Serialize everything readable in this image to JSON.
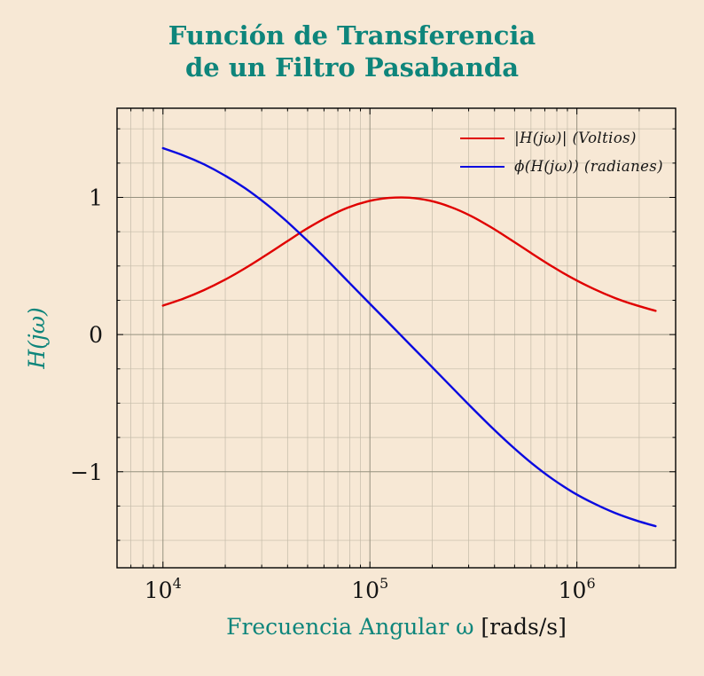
{
  "title": {
    "line1": "Función de Transferencia",
    "line2": "de un Filtro Pasabanda"
  },
  "ylabel": "H(jω)",
  "xlabel": {
    "main": "Frecuencia Angular ω",
    "units": " [rads/s]"
  },
  "legend": {
    "position": "upper right",
    "items": [
      {
        "label": "|H(jω)| (Voltios)",
        "color": "#e00000"
      },
      {
        "label": "ϕ(H(jω)) (radianes)",
        "color": "#0a0ae0"
      }
    ]
  },
  "colors": {
    "accent": "#0e857b",
    "background": "#f7e8d5",
    "text": "#141414",
    "grid_major": "#96917f",
    "grid_minor": "#c4bba9",
    "magnitude_curve": "#e00000",
    "phase_curve": "#0a0ae0"
  },
  "chart_data": {
    "type": "line",
    "title": "Función de Transferencia de un Filtro Pasabanda",
    "xlabel": "Frecuencia Angular ω [rads/s]",
    "ylabel": "H(jω)",
    "xscale": "log",
    "xlim": [
      6000,
      3000000
    ],
    "ylim": [
      -1.7,
      1.65
    ],
    "grid": {
      "major_color": "#96917f",
      "minor_color": "#c4bba9",
      "y_minor_step": 0.25,
      "y_minor_range": [
        -1.5,
        1.5
      ]
    },
    "x_ticks": [
      {
        "value": 10000,
        "base": "10",
        "exp": "4"
      },
      {
        "value": 100000,
        "base": "10",
        "exp": "5"
      },
      {
        "value": 1000000,
        "base": "10",
        "exp": "6"
      }
    ],
    "y_ticks": [
      {
        "value": 1,
        "label": "1"
      },
      {
        "value": 0,
        "label": "0"
      },
      {
        "value": -1,
        "label": "−1"
      }
    ],
    "x": [
      10000,
      12566,
      15790,
      19841,
      24932,
      31328,
      39365,
      49464,
      62154,
      78100,
      98136,
      123320,
      154950,
      194700,
      244650,
      307420,
      386280,
      485380,
      609910,
      766380,
      962990,
      1210000,
      1520500,
      1910600,
      2400900
    ],
    "series": [
      {
        "name": "|H(jω)| (Voltios)",
        "color": "#e00000",
        "values": [
          0.211,
          0.262,
          0.324,
          0.398,
          0.483,
          0.577,
          0.675,
          0.771,
          0.856,
          0.925,
          0.972,
          0.996,
          0.998,
          0.976,
          0.931,
          0.865,
          0.781,
          0.686,
          0.588,
          0.493,
          0.407,
          0.332,
          0.268,
          0.216,
          0.173
        ]
      },
      {
        "name": "ϕ(H(jω)) (radianes)",
        "color": "#0a0ae0",
        "values": [
          1.359,
          1.306,
          1.241,
          1.161,
          1.067,
          0.956,
          0.829,
          0.69,
          0.543,
          0.39,
          0.237,
          0.085,
          -0.068,
          -0.22,
          -0.373,
          -0.526,
          -0.674,
          -0.814,
          -0.942,
          -1.055,
          -1.152,
          -1.232,
          -1.299,
          -1.353,
          -1.397
        ]
      }
    ]
  }
}
